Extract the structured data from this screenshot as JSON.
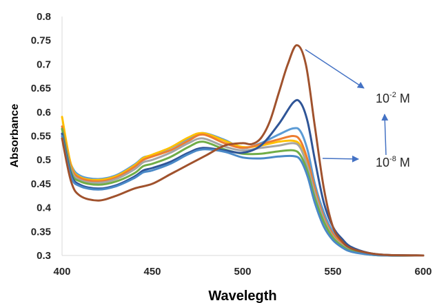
{
  "chart_data": {
    "type": "line",
    "xlabel": "Wavelegth",
    "ylabel": "Absorbance",
    "xlim": [
      400,
      600
    ],
    "ylim": [
      0.3,
      0.8
    ],
    "xticks": [
      "400",
      "450",
      "500",
      "550",
      "600"
    ],
    "yticks": [
      "0.3",
      "0.35",
      "0.4",
      "0.45",
      "0.5",
      "0.55",
      "0.6",
      "0.65",
      "0.7",
      "0.75",
      "0.8"
    ],
    "grid": false,
    "legend": "none",
    "series": [
      {
        "color": "#5b9bd5",
        "x": [
          400,
          405,
          410,
          420,
          430,
          440,
          445,
          450,
          460,
          470,
          478,
          490,
          500,
          510,
          520,
          528,
          532,
          536,
          540,
          545,
          550,
          555,
          560,
          570,
          580,
          600
        ],
        "y": [
          0.555,
          0.49,
          0.467,
          0.46,
          0.468,
          0.49,
          0.505,
          0.51,
          0.525,
          0.545,
          0.556,
          0.542,
          0.525,
          0.535,
          0.553,
          0.566,
          0.56,
          0.52,
          0.45,
          0.39,
          0.35,
          0.33,
          0.315,
          0.305,
          0.301,
          0.3
        ]
      },
      {
        "color": "#ffc000",
        "x": [
          400,
          405,
          410,
          420,
          430,
          440,
          445,
          450,
          460,
          470,
          478,
          490,
          500,
          510,
          520,
          528,
          532,
          536,
          540,
          545,
          550,
          555,
          560,
          570,
          580,
          600
        ],
        "y": [
          0.59,
          0.49,
          0.464,
          0.458,
          0.466,
          0.488,
          0.504,
          0.511,
          0.526,
          0.547,
          0.556,
          0.54,
          0.527,
          0.53,
          0.538,
          0.54,
          0.53,
          0.49,
          0.43,
          0.375,
          0.34,
          0.323,
          0.312,
          0.303,
          0.3,
          0.3
        ]
      },
      {
        "color": "#ed7d31",
        "x": [
          400,
          405,
          410,
          420,
          430,
          440,
          445,
          450,
          460,
          470,
          478,
          490,
          500,
          510,
          520,
          528,
          532,
          536,
          540,
          545,
          550,
          555,
          560,
          570,
          580,
          600
        ],
        "y": [
          0.57,
          0.485,
          0.462,
          0.455,
          0.463,
          0.485,
          0.5,
          0.507,
          0.52,
          0.54,
          0.553,
          0.535,
          0.525,
          0.533,
          0.543,
          0.55,
          0.54,
          0.5,
          0.44,
          0.38,
          0.345,
          0.326,
          0.313,
          0.304,
          0.301,
          0.3
        ]
      },
      {
        "color": "#a5a5a5",
        "x": [
          400,
          405,
          410,
          420,
          430,
          440,
          445,
          450,
          460,
          470,
          478,
          490,
          500,
          510,
          520,
          528,
          532,
          536,
          540,
          545,
          550,
          555,
          560,
          570,
          580,
          600
        ],
        "y": [
          0.565,
          0.48,
          0.458,
          0.452,
          0.46,
          0.48,
          0.495,
          0.5,
          0.515,
          0.535,
          0.545,
          0.528,
          0.52,
          0.525,
          0.53,
          0.535,
          0.525,
          0.485,
          0.43,
          0.375,
          0.34,
          0.322,
          0.311,
          0.303,
          0.3,
          0.3
        ]
      },
      {
        "color": "#70ad47",
        "x": [
          400,
          405,
          410,
          420,
          430,
          440,
          445,
          450,
          460,
          470,
          478,
          490,
          500,
          510,
          520,
          528,
          532,
          536,
          540,
          545,
          550,
          555,
          560,
          570,
          580,
          600
        ],
        "y": [
          0.565,
          0.475,
          0.455,
          0.448,
          0.455,
          0.472,
          0.487,
          0.492,
          0.506,
          0.527,
          0.538,
          0.522,
          0.513,
          0.513,
          0.518,
          0.52,
          0.51,
          0.475,
          0.42,
          0.37,
          0.337,
          0.32,
          0.31,
          0.302,
          0.3,
          0.3
        ]
      },
      {
        "color": "#2f5597",
        "x": [
          400,
          405,
          410,
          420,
          430,
          440,
          445,
          450,
          460,
          470,
          478,
          490,
          500,
          510,
          520,
          528,
          532,
          536,
          540,
          545,
          550,
          555,
          560,
          570,
          580,
          600
        ],
        "y": [
          0.555,
          0.47,
          0.448,
          0.44,
          0.447,
          0.465,
          0.478,
          0.483,
          0.496,
          0.515,
          0.525,
          0.52,
          0.515,
          0.53,
          0.575,
          0.62,
          0.62,
          0.58,
          0.5,
          0.41,
          0.36,
          0.335,
          0.318,
          0.305,
          0.301,
          0.3
        ]
      },
      {
        "color": "#4a89c7",
        "x": [
          400,
          405,
          410,
          420,
          430,
          440,
          445,
          450,
          460,
          470,
          478,
          490,
          500,
          510,
          520,
          528,
          532,
          536,
          540,
          545,
          550,
          555,
          560,
          570,
          580,
          600
        ],
        "y": [
          0.55,
          0.465,
          0.445,
          0.438,
          0.445,
          0.462,
          0.474,
          0.478,
          0.492,
          0.512,
          0.522,
          0.517,
          0.505,
          0.503,
          0.507,
          0.508,
          0.5,
          0.465,
          0.41,
          0.36,
          0.332,
          0.317,
          0.308,
          0.302,
          0.3,
          0.3
        ]
      },
      {
        "color": "#a0522d",
        "x": [
          400,
          405,
          410,
          420,
          430,
          440,
          450,
          460,
          470,
          480,
          490,
          500,
          505,
          510,
          515,
          520,
          525,
          530,
          535,
          540,
          545,
          550,
          555,
          560,
          570,
          580,
          600
        ],
        "y": [
          0.545,
          0.455,
          0.425,
          0.415,
          0.425,
          0.44,
          0.45,
          0.47,
          0.49,
          0.51,
          0.53,
          0.535,
          0.533,
          0.545,
          0.58,
          0.64,
          0.7,
          0.74,
          0.7,
          0.57,
          0.44,
          0.36,
          0.33,
          0.315,
          0.305,
          0.301,
          0.3
        ]
      }
    ],
    "annotations": [
      {
        "base": "10",
        "sup": "-2",
        "unit": " M"
      },
      {
        "base": "10",
        "sup": "-8",
        "unit": " M"
      }
    ]
  }
}
